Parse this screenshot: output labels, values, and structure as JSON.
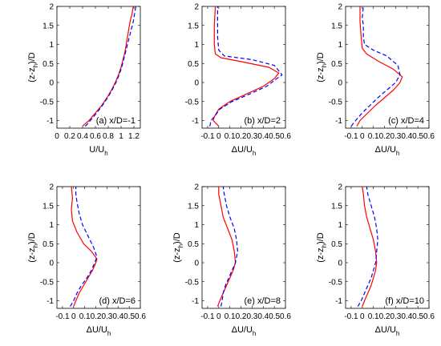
{
  "figure": {
    "colors": {
      "measured": "#ff0000",
      "simulated": "#0000ff"
    },
    "line_styles": {
      "measured": "solid",
      "simulated": "dashed"
    }
  },
  "chart_data": [
    {
      "type": "line",
      "panel_label": "(a) x/D=-1",
      "xlabel": "U/U",
      "xlabel_sub": "h",
      "ylabel": "(z-z",
      "ylabel_sub": "h",
      "ylabel_tail": ")/D",
      "xlim": [
        0,
        1.3
      ],
      "ylim": [
        -1.2,
        2
      ],
      "xticks": [
        0,
        0.2,
        0.4,
        0.6,
        0.8,
        1,
        1.2
      ],
      "xtick_labels": [
        "0",
        "0.2",
        "0.4",
        "0.6",
        "0.8",
        "1",
        "1.2"
      ],
      "yticks": [
        -1,
        -0.5,
        0,
        0.5,
        1,
        1.5,
        2
      ],
      "ytick_labels": [
        "-1",
        "-0.5",
        "0",
        "0.5",
        "1",
        "1.5",
        "2"
      ],
      "series": [
        {
          "style": "measured",
          "points": [
            [
              0.4,
              -1.15
            ],
            [
              0.43,
              -1.1
            ],
            [
              0.5,
              -1.0
            ],
            [
              0.6,
              -0.8
            ],
            [
              0.7,
              -0.6
            ],
            [
              0.78,
              -0.4
            ],
            [
              0.85,
              -0.2
            ],
            [
              0.91,
              0.0
            ],
            [
              0.96,
              0.2
            ],
            [
              1.0,
              0.4
            ],
            [
              1.03,
              0.6
            ],
            [
              1.06,
              0.8
            ],
            [
              1.08,
              1.0
            ],
            [
              1.1,
              1.2
            ],
            [
              1.12,
              1.4
            ],
            [
              1.14,
              1.6
            ],
            [
              1.17,
              1.8
            ],
            [
              1.19,
              2.0
            ]
          ]
        },
        {
          "style": "simulated",
          "points": [
            [
              0.44,
              -1.15
            ],
            [
              0.47,
              -1.1
            ],
            [
              0.52,
              -1.0
            ],
            [
              0.62,
              -0.8
            ],
            [
              0.71,
              -0.6
            ],
            [
              0.79,
              -0.4
            ],
            [
              0.86,
              -0.2
            ],
            [
              0.92,
              0.0
            ],
            [
              0.97,
              0.2
            ],
            [
              1.01,
              0.4
            ],
            [
              1.04,
              0.6
            ],
            [
              1.07,
              0.8
            ],
            [
              1.1,
              1.0
            ],
            [
              1.13,
              1.2
            ],
            [
              1.16,
              1.4
            ],
            [
              1.19,
              1.6
            ],
            [
              1.21,
              1.8
            ],
            [
              1.23,
              2.0
            ]
          ]
        }
      ]
    },
    {
      "type": "line",
      "panel_label": "(b) x/D=2",
      "xlabel": "ΔU/U",
      "xlabel_sub": "h",
      "ylabel": "",
      "ylabel_sub": "",
      "ylabel_tail": "",
      "xlim": [
        -0.15,
        0.6
      ],
      "ylim": [
        -1.2,
        2
      ],
      "xticks": [
        -0.1,
        0,
        0.1,
        0.2,
        0.3,
        0.4,
        0.5,
        0.6
      ],
      "xtick_labels": [
        "-0.1",
        "0",
        "0.1",
        "0.2",
        "0.3",
        "0.4",
        "0.5",
        "0.6"
      ],
      "yticks": [
        -1,
        -0.5,
        0,
        0.5,
        1,
        1.5,
        2
      ],
      "ytick_labels": [
        "-1",
        "-0.5",
        "0",
        "0.5",
        "1",
        "1.5",
        "2"
      ],
      "series": [
        {
          "style": "measured",
          "points": [
            [
              0.0,
              -1.15
            ],
            [
              -0.05,
              -1.0
            ],
            [
              -0.04,
              -0.9
            ],
            [
              0.0,
              -0.7
            ],
            [
              0.1,
              -0.5
            ],
            [
              0.25,
              -0.3
            ],
            [
              0.4,
              -0.1
            ],
            [
              0.5,
              0.1
            ],
            [
              0.54,
              0.25
            ],
            [
              0.45,
              0.4
            ],
            [
              0.2,
              0.55
            ],
            [
              0.02,
              0.65
            ],
            [
              -0.03,
              0.75
            ],
            [
              -0.04,
              1.0
            ],
            [
              -0.04,
              1.5
            ],
            [
              -0.03,
              2.0
            ]
          ]
        },
        {
          "style": "simulated",
          "points": [
            [
              -0.08,
              -1.15
            ],
            [
              -0.07,
              -1.0
            ],
            [
              -0.04,
              -0.9
            ],
            [
              0.01,
              -0.7
            ],
            [
              0.12,
              -0.5
            ],
            [
              0.28,
              -0.3
            ],
            [
              0.43,
              -0.1
            ],
            [
              0.52,
              0.1
            ],
            [
              0.57,
              0.2
            ],
            [
              0.5,
              0.45
            ],
            [
              0.3,
              0.6
            ],
            [
              0.05,
              0.7
            ],
            [
              0.0,
              0.85
            ],
            [
              -0.01,
              1.2
            ],
            [
              -0.01,
              1.8
            ],
            [
              -0.01,
              2.0
            ]
          ]
        }
      ]
    },
    {
      "type": "line",
      "panel_label": "(c) x/D=4",
      "xlabel": "ΔU/U",
      "xlabel_sub": "h",
      "ylabel": "(z-z",
      "ylabel_sub": "h",
      "ylabel_tail": ")/D",
      "xlim": [
        -0.15,
        0.6
      ],
      "ylim": [
        -1.2,
        2
      ],
      "xticks": [
        -0.1,
        0,
        0.1,
        0.2,
        0.3,
        0.4,
        0.5,
        0.6
      ],
      "xtick_labels": [
        "-0.1",
        "0",
        "0.1",
        "0.2",
        "0.3",
        "0.4",
        "0.5",
        "0.6"
      ],
      "yticks": [
        -1,
        -0.5,
        0,
        0.5,
        1,
        1.5,
        2
      ],
      "ytick_labels": [
        "-1",
        "-0.5",
        "0",
        "0.5",
        "1",
        "1.5",
        "2"
      ],
      "series": [
        {
          "style": "measured",
          "points": [
            [
              -0.05,
              -1.15
            ],
            [
              -0.02,
              -1.0
            ],
            [
              0.05,
              -0.8
            ],
            [
              0.12,
              -0.6
            ],
            [
              0.2,
              -0.4
            ],
            [
              0.28,
              -0.2
            ],
            [
              0.34,
              0.0
            ],
            [
              0.36,
              0.15
            ],
            [
              0.28,
              0.35
            ],
            [
              0.15,
              0.55
            ],
            [
              0.04,
              0.75
            ],
            [
              0.0,
              0.9
            ],
            [
              -0.01,
              1.2
            ],
            [
              -0.02,
              1.6
            ],
            [
              -0.02,
              2.0
            ]
          ]
        },
        {
          "style": "simulated",
          "points": [
            [
              -0.1,
              -1.15
            ],
            [
              -0.06,
              -1.0
            ],
            [
              0.0,
              -0.8
            ],
            [
              0.07,
              -0.6
            ],
            [
              0.14,
              -0.4
            ],
            [
              0.22,
              -0.2
            ],
            [
              0.3,
              0.0
            ],
            [
              0.34,
              0.2
            ],
            [
              0.32,
              0.45
            ],
            [
              0.22,
              0.7
            ],
            [
              0.1,
              0.85
            ],
            [
              0.02,
              1.0
            ],
            [
              0.01,
              1.2
            ],
            [
              0.01,
              1.5
            ],
            [
              0.0,
              1.7
            ],
            [
              0.01,
              2.0
            ]
          ]
        }
      ]
    },
    {
      "type": "line",
      "panel_label": "(d) x/D=6",
      "xlabel": "ΔU/U",
      "xlabel_sub": "h",
      "ylabel": "(z-z",
      "ylabel_sub": "h",
      "ylabel_tail": ")/D",
      "xlim": [
        -0.15,
        0.6
      ],
      "ylim": [
        -1.2,
        2
      ],
      "xticks": [
        -0.1,
        0,
        0.1,
        0.2,
        0.3,
        0.4,
        0.5,
        0.6
      ],
      "xtick_labels": [
        "-0.1",
        "0",
        "0.1",
        "0.2",
        "0.3",
        "0.4",
        "0.5",
        "0.6"
      ],
      "yticks": [
        -1,
        -0.5,
        0,
        0.5,
        1,
        1.5,
        2
      ],
      "ytick_labels": [
        "-1",
        "-0.5",
        "0",
        "0.5",
        "1",
        "1.5",
        "2"
      ],
      "series": [
        {
          "style": "measured",
          "points": [
            [
              0.0,
              -1.15
            ],
            [
              0.02,
              -1.0
            ],
            [
              0.05,
              -0.8
            ],
            [
              0.09,
              -0.6
            ],
            [
              0.13,
              -0.4
            ],
            [
              0.17,
              -0.2
            ],
            [
              0.2,
              0.0
            ],
            [
              0.21,
              0.1
            ],
            [
              0.16,
              0.3
            ],
            [
              0.09,
              0.5
            ],
            [
              0.03,
              0.8
            ],
            [
              -0.01,
              1.1
            ],
            [
              -0.02,
              1.4
            ],
            [
              -0.01,
              1.7
            ],
            [
              -0.02,
              2.0
            ]
          ]
        },
        {
          "style": "simulated",
          "points": [
            [
              -0.03,
              -1.15
            ],
            [
              0.0,
              -1.0
            ],
            [
              0.03,
              -0.8
            ],
            [
              0.07,
              -0.6
            ],
            [
              0.12,
              -0.4
            ],
            [
              0.16,
              -0.2
            ],
            [
              0.19,
              0.0
            ],
            [
              0.21,
              0.15
            ],
            [
              0.18,
              0.4
            ],
            [
              0.13,
              0.7
            ],
            [
              0.08,
              1.0
            ],
            [
              0.05,
              1.3
            ],
            [
              0.03,
              1.6
            ],
            [
              0.02,
              1.8
            ],
            [
              0.02,
              2.0
            ]
          ]
        }
      ]
    },
    {
      "type": "line",
      "panel_label": "(e) x/D=8",
      "xlabel": "ΔU/U",
      "xlabel_sub": "h",
      "ylabel": "(z-z",
      "ylabel_sub": "h",
      "ylabel_tail": ")/D",
      "xlim": [
        -0.15,
        0.6
      ],
      "ylim": [
        -1.2,
        2
      ],
      "xticks": [
        -0.1,
        0,
        0.1,
        0.2,
        0.3,
        0.4,
        0.5,
        0.6
      ],
      "xtick_labels": [
        "-0.1",
        "0",
        "0.1",
        "0.2",
        "0.3",
        "0.4",
        "0.5",
        "0.6"
      ],
      "yticks": [
        -1,
        -0.5,
        0,
        0.5,
        1,
        1.5,
        2
      ],
      "ytick_labels": [
        "-1",
        "-0.5",
        "0",
        "0.5",
        "1",
        "1.5",
        "2"
      ],
      "series": [
        {
          "style": "measured",
          "points": [
            [
              -0.01,
              -1.15
            ],
            [
              0.01,
              -1.0
            ],
            [
              0.04,
              -0.8
            ],
            [
              0.07,
              -0.6
            ],
            [
              0.1,
              -0.4
            ],
            [
              0.13,
              -0.2
            ],
            [
              0.15,
              0.0
            ],
            [
              0.14,
              0.3
            ],
            [
              0.12,
              0.6
            ],
            [
              0.08,
              0.9
            ],
            [
              0.04,
              1.2
            ],
            [
              0.02,
              1.5
            ],
            [
              0.0,
              1.8
            ],
            [
              0.0,
              2.0
            ]
          ]
        },
        {
          "style": "simulated",
          "points": [
            [
              0.02,
              -1.15
            ],
            [
              0.03,
              -1.0
            ],
            [
              0.04,
              -0.8
            ],
            [
              0.06,
              -0.6
            ],
            [
              0.09,
              -0.4
            ],
            [
              0.12,
              -0.2
            ],
            [
              0.15,
              0.0
            ],
            [
              0.17,
              0.3
            ],
            [
              0.16,
              0.6
            ],
            [
              0.14,
              0.9
            ],
            [
              0.1,
              1.2
            ],
            [
              0.07,
              1.5
            ],
            [
              0.05,
              1.8
            ],
            [
              0.04,
              2.0
            ]
          ]
        }
      ]
    },
    {
      "type": "line",
      "panel_label": "(f) x/D=10",
      "xlabel": "ΔU/U",
      "xlabel_sub": "h",
      "ylabel": "(z-z",
      "ylabel_sub": "h",
      "ylabel_tail": ")/D",
      "xlim": [
        -0.15,
        0.6
      ],
      "ylim": [
        -1.2,
        2
      ],
      "xticks": [
        -0.1,
        0,
        0.1,
        0.2,
        0.3,
        0.4,
        0.5,
        0.6
      ],
      "xtick_labels": [
        "-0.1",
        "0",
        "0.1",
        "0.2",
        "0.3",
        "0.4",
        "0.5",
        "0.6"
      ],
      "yticks": [
        -1,
        -0.5,
        0,
        0.5,
        1,
        1.5,
        2
      ],
      "ytick_labels": [
        "-1",
        "-0.5",
        "0",
        "0.5",
        "1",
        "1.5",
        "2"
      ],
      "series": [
        {
          "style": "measured",
          "points": [
            [
              0.0,
              -1.15
            ],
            [
              0.02,
              -1.0
            ],
            [
              0.05,
              -0.8
            ],
            [
              0.08,
              -0.6
            ],
            [
              0.1,
              -0.4
            ],
            [
              0.12,
              -0.2
            ],
            [
              0.13,
              0.0
            ],
            [
              0.12,
              0.3
            ],
            [
              0.1,
              0.6
            ],
            [
              0.07,
              0.9
            ],
            [
              0.04,
              1.2
            ],
            [
              0.02,
              1.5
            ],
            [
              0.01,
              1.8
            ],
            [
              0.0,
              2.0
            ]
          ]
        },
        {
          "style": "simulated",
          "points": [
            [
              -0.04,
              -1.15
            ],
            [
              -0.01,
              -1.0
            ],
            [
              0.02,
              -0.8
            ],
            [
              0.05,
              -0.6
            ],
            [
              0.08,
              -0.4
            ],
            [
              0.1,
              -0.2
            ],
            [
              0.12,
              0.0
            ],
            [
              0.13,
              0.3
            ],
            [
              0.14,
              0.6
            ],
            [
              0.13,
              0.9
            ],
            [
              0.11,
              1.2
            ],
            [
              0.08,
              1.5
            ],
            [
              0.05,
              1.8
            ],
            [
              0.04,
              2.0
            ]
          ]
        }
      ]
    }
  ]
}
